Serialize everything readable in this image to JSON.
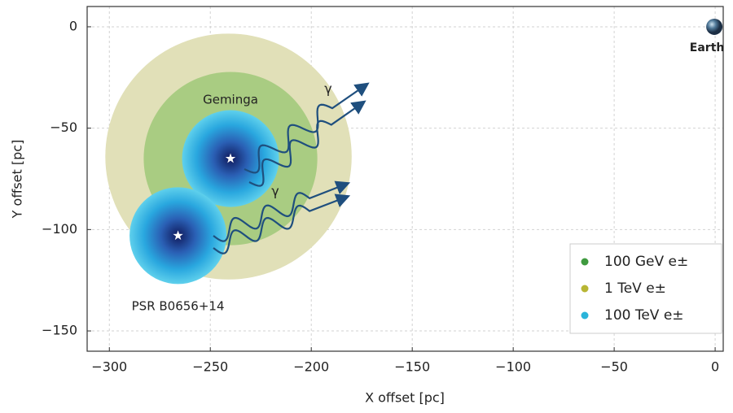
{
  "chart_data": {
    "type": "halo",
    "xlabel": "X offset [pc]",
    "ylabel": "Y offset [pc]",
    "xlim": [
      -311,
      4
    ],
    "ylim": [
      -160,
      10
    ],
    "xticks": [
      {
        "value": -300,
        "label": "−300"
      },
      {
        "value": -250,
        "label": "−250"
      },
      {
        "value": -200,
        "label": "−200"
      },
      {
        "value": -150,
        "label": "−150"
      },
      {
        "value": -100,
        "label": "−100"
      },
      {
        "value": -50,
        "label": "−50"
      },
      0
    ],
    "yticks": [
      0,
      {
        "value": -50,
        "label": "−50"
      },
      {
        "value": -100,
        "label": "−100"
      },
      {
        "value": -150,
        "label": "−150"
      }
    ],
    "grid": true,
    "sources": [
      {
        "name": "Geminga",
        "x": -240,
        "y": -65
      },
      {
        "name": "PSR B0656+14",
        "x": -266,
        "y": -103
      }
    ],
    "series": [
      {
        "name": "100 GeV e±",
        "color": "#3f9a3f",
        "fill": "#a9cc82",
        "halos": [
          {
            "x": -240,
            "y": -65,
            "r": 43
          }
        ]
      },
      {
        "name": "1 TeV e±",
        "color": "#b8b634",
        "fill": "#e1e0b8",
        "halos": [
          {
            "x": -241,
            "y": -64,
            "r": 61
          }
        ]
      },
      {
        "name": "100 TeV e±",
        "color": "#2ab4da",
        "fill": "url(#blueHalo)",
        "halos": [
          {
            "x": -240,
            "y": -65,
            "r": 24
          },
          {
            "x": -266,
            "y": -103,
            "r": 24
          }
        ]
      }
    ],
    "annotations": [
      "γ",
      "γ"
    ],
    "earth": {
      "label": "Earth",
      "x": 0,
      "y": 0
    },
    "legend": "lower right"
  }
}
